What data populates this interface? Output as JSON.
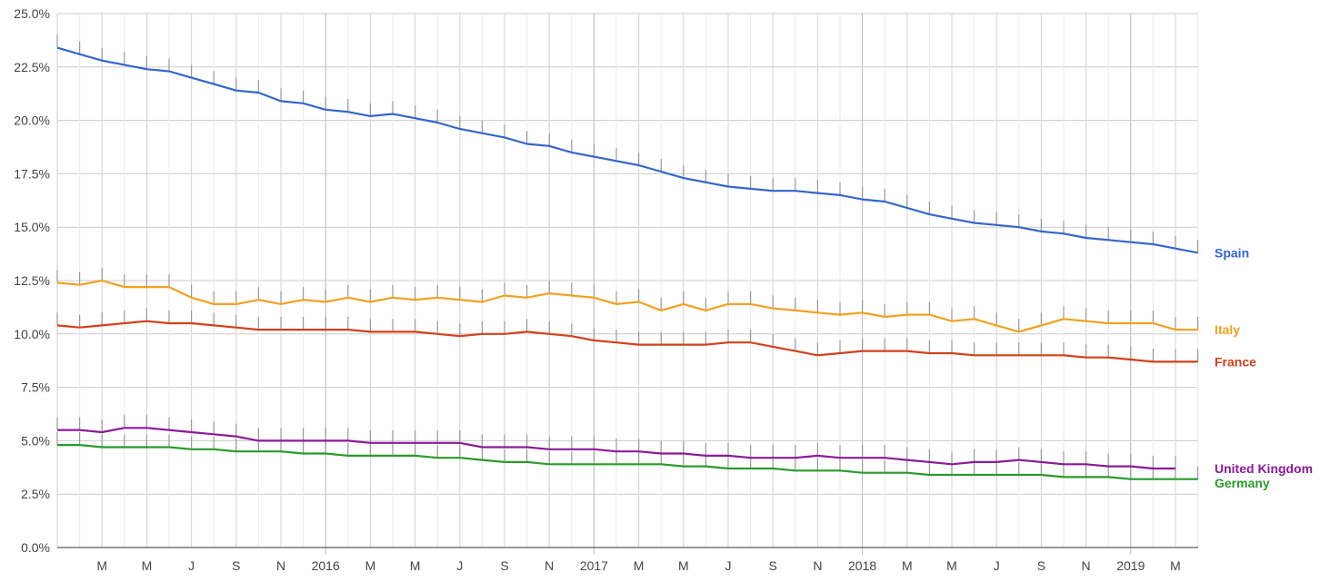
{
  "chart_data": {
    "type": "line",
    "y_axis": {
      "min": 0,
      "max": 25,
      "ticks": [
        0,
        2.5,
        5,
        7.5,
        10,
        12.5,
        15,
        17.5,
        20,
        22.5,
        25
      ],
      "tick_labels": [
        "0.0%",
        "2.5%",
        "5.0%",
        "7.5%",
        "10.0%",
        "12.5%",
        "15.0%",
        "17.5%",
        "20.0%",
        "22.5%",
        "25.0%"
      ]
    },
    "x_axis": {
      "start": "2015-01",
      "end": "2019-05",
      "ticks": [
        {
          "month": "2015-03",
          "label": "M"
        },
        {
          "month": "2015-05",
          "label": "M"
        },
        {
          "month": "2015-07",
          "label": "J"
        },
        {
          "month": "2015-09",
          "label": "S"
        },
        {
          "month": "2015-11",
          "label": "N"
        },
        {
          "month": "2016-01",
          "label": "2016"
        },
        {
          "month": "2016-03",
          "label": "M"
        },
        {
          "month": "2016-05",
          "label": "M"
        },
        {
          "month": "2016-07",
          "label": "J"
        },
        {
          "month": "2016-09",
          "label": "S"
        },
        {
          "month": "2016-11",
          "label": "N"
        },
        {
          "month": "2017-01",
          "label": "2017"
        },
        {
          "month": "2017-03",
          "label": "M"
        },
        {
          "month": "2017-05",
          "label": "M"
        },
        {
          "month": "2017-07",
          "label": "J"
        },
        {
          "month": "2017-09",
          "label": "S"
        },
        {
          "month": "2017-11",
          "label": "N"
        },
        {
          "month": "2018-01",
          "label": "2018"
        },
        {
          "month": "2018-03",
          "label": "M"
        },
        {
          "month": "2018-05",
          "label": "M"
        },
        {
          "month": "2018-07",
          "label": "J"
        },
        {
          "month": "2018-09",
          "label": "S"
        },
        {
          "month": "2018-11",
          "label": "N"
        },
        {
          "month": "2019-01",
          "label": "2019"
        },
        {
          "month": "2019-03",
          "label": "M"
        }
      ]
    },
    "grid": true,
    "error_bar_color": "#999999",
    "error_bar_height": 0.6,
    "series": [
      {
        "name": "Spain",
        "color": "#3366CC",
        "values": [
          23.4,
          23.1,
          22.8,
          22.6,
          22.4,
          22.3,
          22.0,
          21.7,
          21.4,
          21.3,
          20.9,
          20.8,
          20.5,
          20.4,
          20.2,
          20.3,
          20.1,
          19.9,
          19.6,
          19.4,
          19.2,
          18.9,
          18.8,
          18.5,
          18.3,
          18.1,
          17.9,
          17.6,
          17.3,
          17.1,
          16.9,
          16.8,
          16.7,
          16.7,
          16.6,
          16.5,
          16.3,
          16.2,
          15.9,
          15.6,
          15.4,
          15.2,
          15.1,
          15.0,
          14.8,
          14.7,
          14.5,
          14.4,
          14.3,
          14.2,
          14.0,
          13.8
        ]
      },
      {
        "name": "Italy",
        "color": "#F4A020",
        "values": [
          12.4,
          12.3,
          12.5,
          12.2,
          12.2,
          12.2,
          11.7,
          11.4,
          11.4,
          11.6,
          11.4,
          11.6,
          11.5,
          11.7,
          11.5,
          11.7,
          11.6,
          11.7,
          11.6,
          11.5,
          11.8,
          11.7,
          11.9,
          11.8,
          11.7,
          11.4,
          11.5,
          11.1,
          11.4,
          11.1,
          11.4,
          11.4,
          11.2,
          11.1,
          11.0,
          10.9,
          11.0,
          10.8,
          10.9,
          10.9,
          10.6,
          10.7,
          10.4,
          10.1,
          10.4,
          10.7,
          10.6,
          10.5,
          10.5,
          10.5,
          10.2,
          10.2
        ]
      },
      {
        "name": "France",
        "color": "#D2401A",
        "values": [
          10.4,
          10.3,
          10.4,
          10.5,
          10.6,
          10.5,
          10.5,
          10.4,
          10.3,
          10.2,
          10.2,
          10.2,
          10.2,
          10.2,
          10.1,
          10.1,
          10.1,
          10.0,
          9.9,
          10.0,
          10.0,
          10.1,
          10.0,
          9.9,
          9.7,
          9.6,
          9.5,
          9.5,
          9.5,
          9.5,
          9.6,
          9.6,
          9.4,
          9.2,
          9.0,
          9.1,
          9.2,
          9.2,
          9.2,
          9.1,
          9.1,
          9.0,
          9.0,
          9.0,
          9.0,
          9.0,
          8.9,
          8.9,
          8.8,
          8.7,
          8.7,
          8.7
        ]
      },
      {
        "name": "United Kingdom",
        "color": "#8B1A9A",
        "values": [
          5.5,
          5.5,
          5.4,
          5.6,
          5.6,
          5.5,
          5.4,
          5.3,
          5.2,
          5.0,
          5.0,
          5.0,
          5.0,
          5.0,
          4.9,
          4.9,
          4.9,
          4.9,
          4.9,
          4.7,
          4.7,
          4.7,
          4.6,
          4.6,
          4.6,
          4.5,
          4.5,
          4.4,
          4.4,
          4.3,
          4.3,
          4.2,
          4.2,
          4.2,
          4.3,
          4.2,
          4.2,
          4.2,
          4.1,
          4.0,
          3.9,
          4.0,
          4.0,
          4.1,
          4.0,
          3.9,
          3.9,
          3.8,
          3.8,
          3.7,
          3.7
        ]
      },
      {
        "name": "Germany",
        "color": "#2A9A2A",
        "values": [
          4.8,
          4.8,
          4.7,
          4.7,
          4.7,
          4.7,
          4.6,
          4.6,
          4.5,
          4.5,
          4.5,
          4.4,
          4.4,
          4.3,
          4.3,
          4.3,
          4.3,
          4.2,
          4.2,
          4.1,
          4.0,
          4.0,
          3.9,
          3.9,
          3.9,
          3.9,
          3.9,
          3.9,
          3.8,
          3.8,
          3.7,
          3.7,
          3.7,
          3.6,
          3.6,
          3.6,
          3.5,
          3.5,
          3.5,
          3.4,
          3.4,
          3.4,
          3.4,
          3.4,
          3.4,
          3.3,
          3.3,
          3.3,
          3.2,
          3.2,
          3.2,
          3.2
        ]
      }
    ]
  }
}
